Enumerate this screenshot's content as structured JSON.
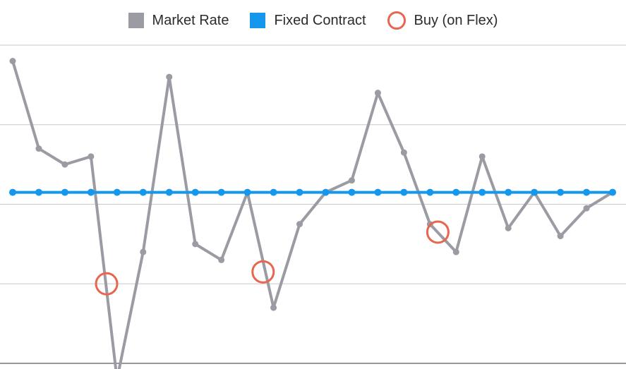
{
  "chart_data": {
    "type": "line",
    "title": "",
    "xlabel": "",
    "ylabel": "",
    "x": [
      1,
      2,
      3,
      4,
      5,
      6,
      7,
      8,
      9,
      10,
      11,
      12,
      13,
      14,
      15,
      16,
      17,
      18,
      19,
      20,
      21,
      22,
      23,
      24
    ],
    "ylim": [
      0,
      4
    ],
    "grid": true,
    "legend_position": "top-center",
    "series": [
      {
        "name": "Market Rate",
        "color": "#9a9ba3",
        "marker": "dot",
        "values": [
          3.8,
          2.7,
          2.5,
          2.6,
          -0.2,
          1.4,
          3.6,
          1.5,
          1.3,
          2.15,
          0.7,
          1.75,
          2.15,
          2.3,
          3.4,
          2.65,
          1.75,
          1.4,
          2.6,
          1.7,
          2.15,
          1.6,
          1.95,
          2.15
        ]
      },
      {
        "name": "Fixed Contract",
        "color": "#1597ec",
        "marker": "dot",
        "values": [
          2.15,
          2.15,
          2.15,
          2.15,
          2.15,
          2.15,
          2.15,
          2.15,
          2.15,
          2.15,
          2.15,
          2.15,
          2.15,
          2.15,
          2.15,
          2.15,
          2.15,
          2.15,
          2.15,
          2.15,
          2.15,
          2.15,
          2.15,
          2.15
        ]
      },
      {
        "name": "Buy (on Flex)",
        "color": "#e8654f",
        "marker": "ring",
        "points": [
          {
            "x": 4.6,
            "y": 1.0
          },
          {
            "x": 10.6,
            "y": 1.15
          },
          {
            "x": 17.3,
            "y": 1.65
          }
        ]
      }
    ]
  }
}
